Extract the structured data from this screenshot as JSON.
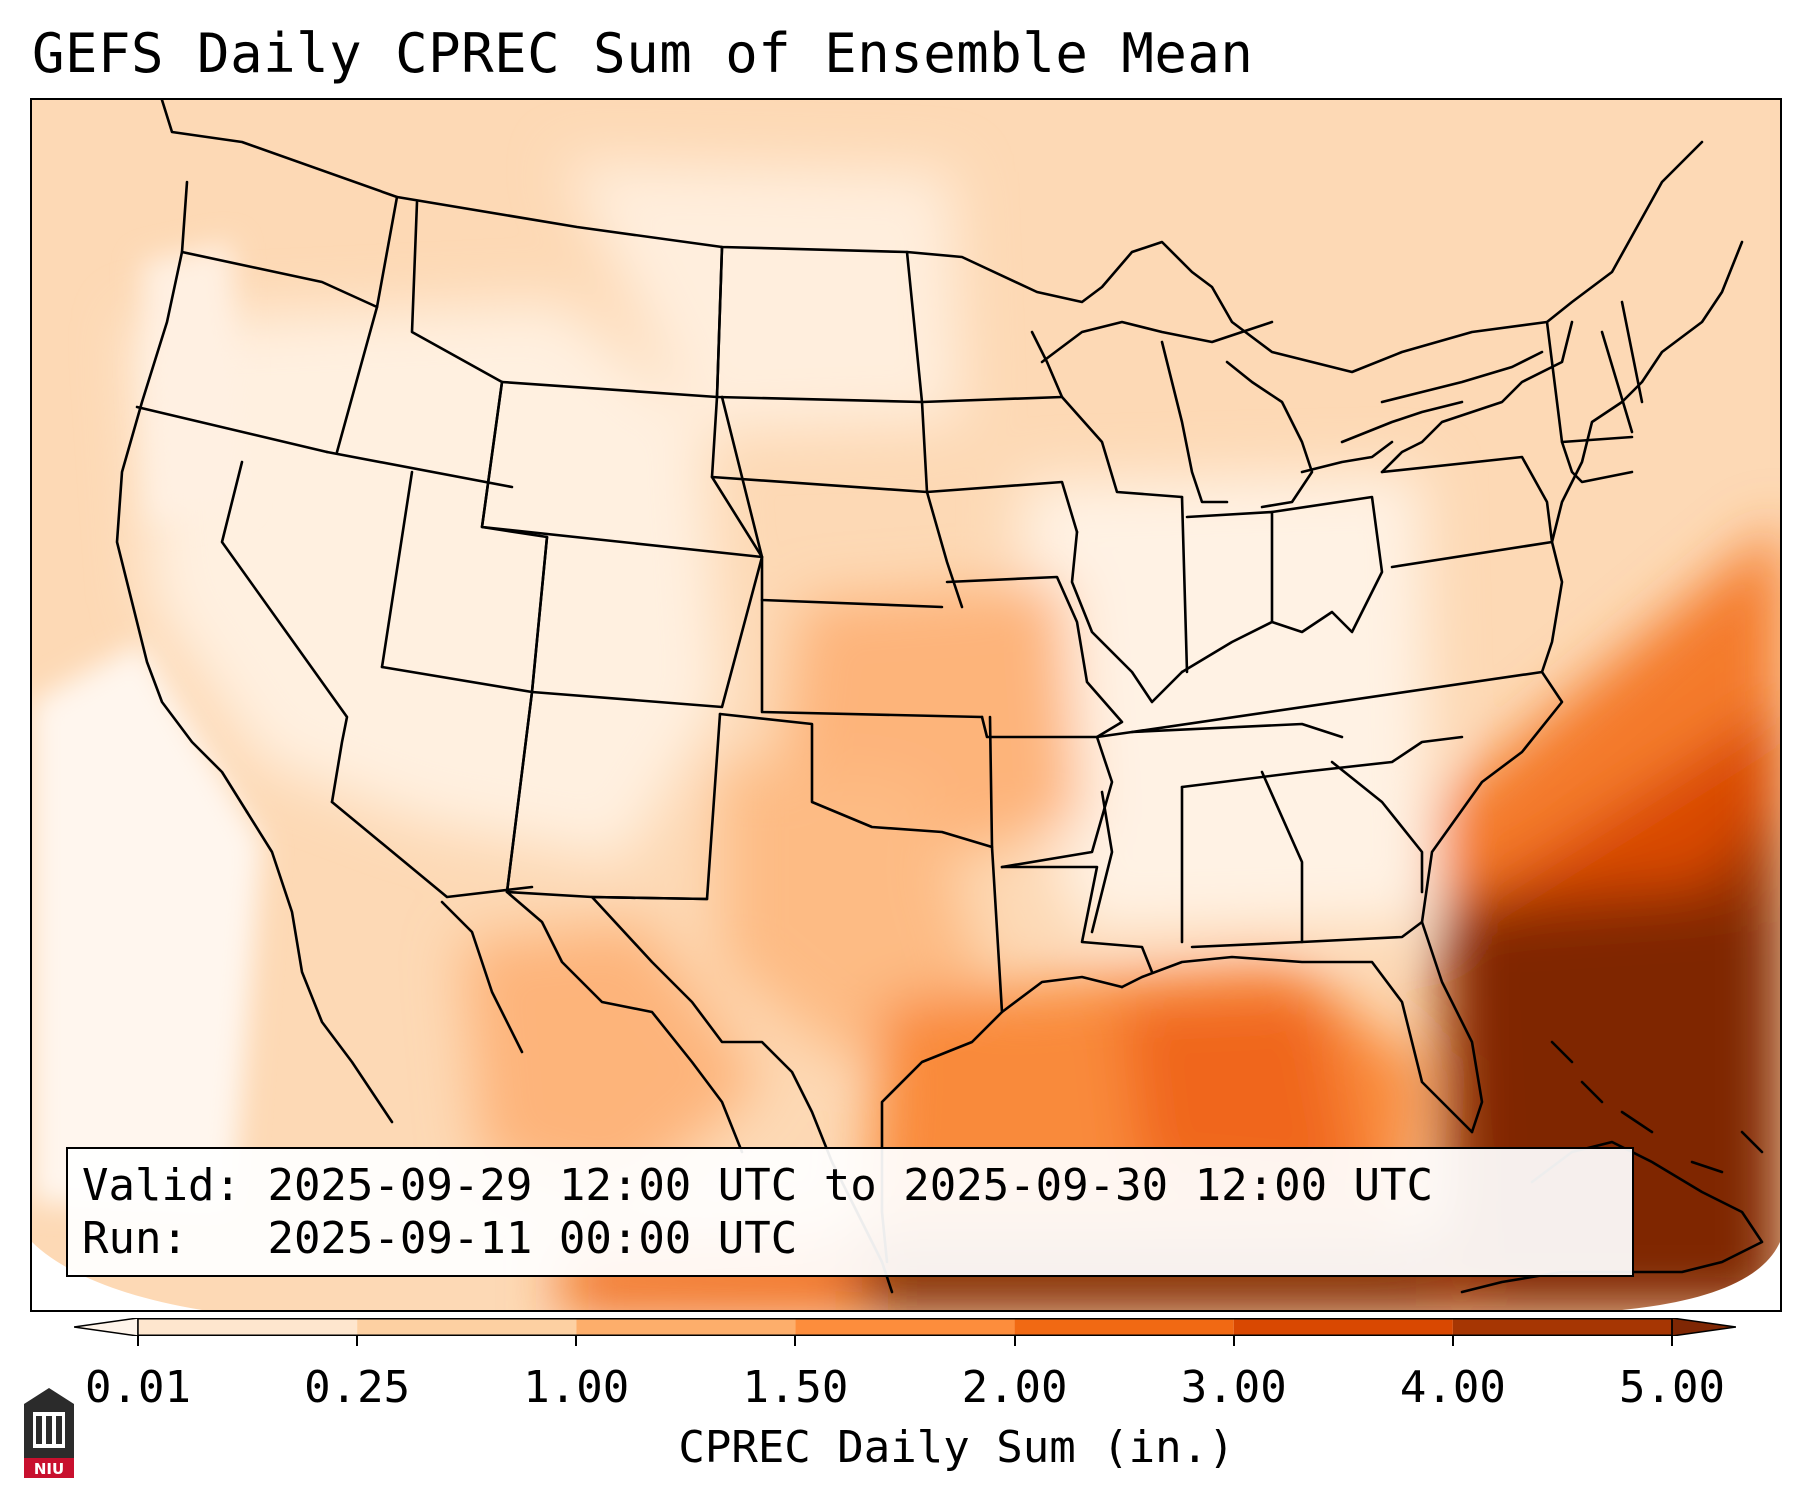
{
  "title": "GEFS Daily CPREC Sum of Ensemble Mean",
  "info": {
    "valid_label": "Valid:",
    "valid_value": "2025-09-29 12:00 UTC to 2025-09-30 12:00 UTC",
    "run_label": "Run:",
    "run_value": "2025-09-11 00:00 UTC"
  },
  "colorbar": {
    "label": "CPREC Daily Sum (in.)",
    "levels": [
      "0.01",
      "0.25",
      "1.00",
      "1.50",
      "2.00",
      "3.00",
      "4.00",
      "5.00"
    ],
    "colors": [
      "#fff5eb",
      "#fee6ce",
      "#fdd0a2",
      "#fdae6b",
      "#fd8d3c",
      "#f16913",
      "#d94801",
      "#a63603",
      "#7f2704"
    ]
  },
  "logo": {
    "text": "NIU",
    "icon": "niu-logo-icon"
  }
}
